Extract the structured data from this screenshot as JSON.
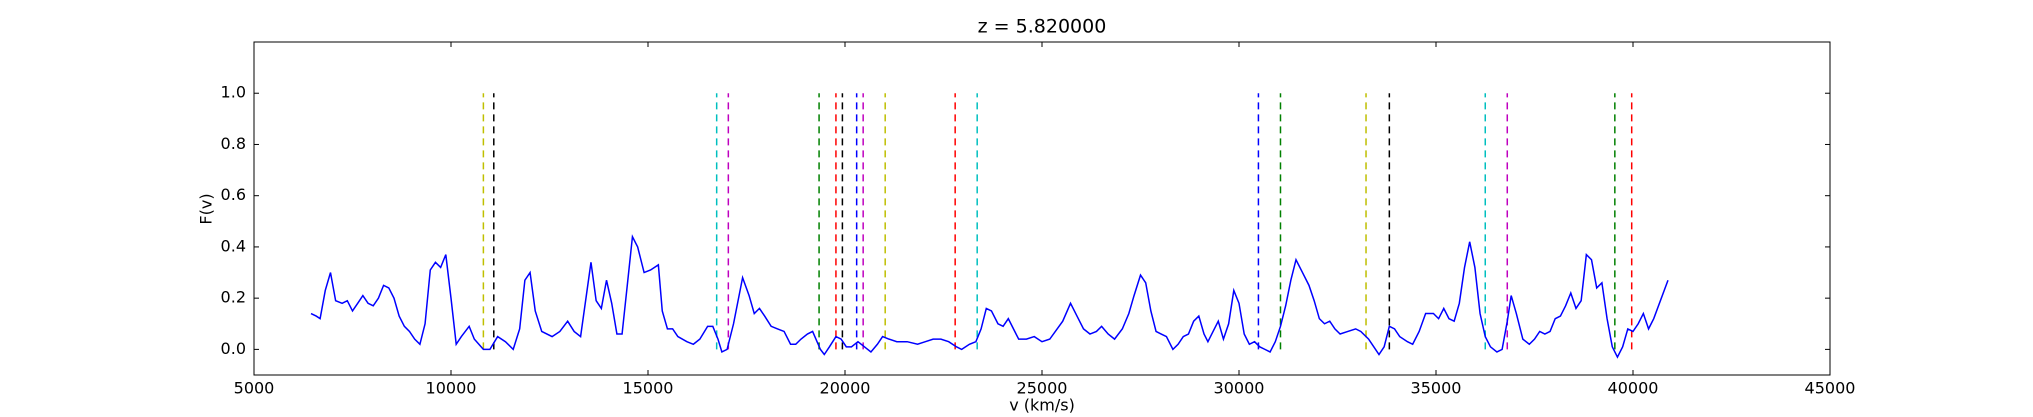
{
  "chart_data": {
    "type": "line",
    "title": "z = 5.820000",
    "xlabel": "v (km/s)",
    "ylabel": "F(v)",
    "xlim": [
      5000,
      45000
    ],
    "ylim": [
      -0.1,
      1.2
    ],
    "xticks": [
      5000,
      10000,
      15000,
      20000,
      25000,
      30000,
      35000,
      40000,
      45000
    ],
    "yticks": [
      {
        "value": 0,
        "label": "0.0"
      },
      {
        "value": 0.2,
        "label": "0.2"
      },
      {
        "value": 0.4,
        "label": "0.4"
      },
      {
        "value": 0.6,
        "label": "0.6"
      },
      {
        "value": 0.8,
        "label": "0.8"
      },
      {
        "value": 1,
        "label": "1.0"
      }
    ],
    "grid": false,
    "x": [
      6447,
      6579,
      6678,
      6809,
      6941,
      7072,
      7237,
      7368,
      7500,
      7632,
      7763,
      7895,
      8026,
      8158,
      8289,
      8421,
      8553,
      8684,
      8816,
      8947,
      9079,
      9211,
      9342,
      9474,
      9605,
      9737,
      9868,
      10000,
      10132,
      10263,
      10461,
      10592,
      10822,
      10987,
      11184,
      11382,
      11579,
      11743,
      11875,
      12007,
      12138,
      12303,
      12566,
      12763,
      12961,
      13125,
      13289,
      13553,
      13684,
      13816,
      13947,
      14079,
      14211,
      14342,
      14474,
      14605,
      14737,
      14901,
      15066,
      15263,
      15362,
      15493,
      15625,
      15757,
      15987,
      16151,
      16316,
      16513,
      16645,
      16776,
      16875,
      17007,
      17171,
      17401,
      17566,
      17697,
      17829,
      17961,
      18125,
      18289,
      18454,
      18618,
      18750,
      18882,
      19046,
      19178,
      19375,
      19474,
      19605,
      19770,
      19901,
      20033,
      20164,
      20329,
      20493,
      20658,
      20822,
      20954,
      21118,
      21316,
      21579,
      21842,
      22039,
      22237,
      22434,
      22632,
      22829,
      22961,
      23158,
      23322,
      23454,
      23586,
      23717,
      23882,
      24013,
      24145,
      24276,
      24408,
      24605,
      24803,
      25000,
      25197,
      25526,
      25724,
      25888,
      26053,
      26217,
      26382,
      26513,
      26678,
      26842,
      27039,
      27204,
      27336,
      27500,
      27632,
      27763,
      27895,
      28026,
      28158,
      28322,
      28454,
      28586,
      28717,
      28849,
      28980,
      29112,
      29211,
      29342,
      29474,
      29605,
      29737,
      29868,
      30000,
      30132,
      30263,
      30395,
      30526,
      30658,
      30789,
      30921,
      31053,
      31184,
      31316,
      31447,
      31612,
      31776,
      31908,
      32039,
      32171,
      32303,
      32434,
      32566,
      32763,
      32961,
      33092,
      33289,
      33421,
      33553,
      33684,
      33816,
      33947,
      34079,
      34276,
      34408,
      34572,
      34737,
      34934,
      35066,
      35197,
      35329,
      35461,
      35592,
      35724,
      35855,
      35987,
      36118,
      36250,
      36382,
      36546,
      36678,
      36809,
      36908,
      37039,
      37204,
      37368,
      37500,
      37632,
      37763,
      37895,
      38026,
      38158,
      38289,
      38421,
      38553,
      38684,
      38816,
      38947,
      39079,
      39211,
      39342,
      39474,
      39605,
      39737,
      39868,
      40000,
      40132,
      40263,
      40395,
      40526,
      40888
    ],
    "series": [
      {
        "color": "#0000ff",
        "values": [
          0.14,
          0.13,
          0.12,
          0.23,
          0.3,
          0.19,
          0.18,
          0.19,
          0.15,
          0.18,
          0.21,
          0.18,
          0.17,
          0.2,
          0.25,
          0.24,
          0.2,
          0.13,
          0.09,
          0.07,
          0.04,
          0.02,
          0.1,
          0.31,
          0.34,
          0.32,
          0.37,
          0.2,
          0.02,
          0.05,
          0.09,
          0.04,
          0.0,
          0.0,
          0.05,
          0.03,
          0.0,
          0.08,
          0.27,
          0.3,
          0.15,
          0.07,
          0.05,
          0.07,
          0.11,
          0.07,
          0.05,
          0.34,
          0.19,
          0.16,
          0.27,
          0.18,
          0.06,
          0.06,
          0.25,
          0.44,
          0.4,
          0.3,
          0.31,
          0.33,
          0.15,
          0.08,
          0.08,
          0.05,
          0.03,
          0.02,
          0.04,
          0.09,
          0.09,
          0.04,
          -0.01,
          0.0,
          0.1,
          0.28,
          0.21,
          0.14,
          0.16,
          0.13,
          0.09,
          0.08,
          0.07,
          0.02,
          0.02,
          0.04,
          0.06,
          0.07,
          0.0,
          -0.02,
          0.01,
          0.05,
          0.04,
          0.01,
          0.01,
          0.03,
          0.01,
          -0.01,
          0.02,
          0.05,
          0.04,
          0.03,
          0.03,
          0.02,
          0.03,
          0.04,
          0.04,
          0.03,
          0.01,
          0.0,
          0.02,
          0.03,
          0.08,
          0.16,
          0.15,
          0.1,
          0.09,
          0.12,
          0.08,
          0.04,
          0.04,
          0.05,
          0.03,
          0.04,
          0.11,
          0.18,
          0.13,
          0.08,
          0.06,
          0.07,
          0.09,
          0.06,
          0.04,
          0.08,
          0.14,
          0.21,
          0.29,
          0.26,
          0.15,
          0.07,
          0.06,
          0.05,
          0.0,
          0.02,
          0.05,
          0.06,
          0.11,
          0.13,
          0.06,
          0.03,
          0.07,
          0.11,
          0.04,
          0.1,
          0.23,
          0.18,
          0.06,
          0.02,
          0.03,
          0.01,
          0.0,
          -0.01,
          0.03,
          0.09,
          0.17,
          0.27,
          0.35,
          0.3,
          0.25,
          0.19,
          0.12,
          0.1,
          0.11,
          0.08,
          0.06,
          0.07,
          0.08,
          0.07,
          0.04,
          0.01,
          -0.02,
          0.01,
          0.09,
          0.08,
          0.05,
          0.03,
          0.02,
          0.07,
          0.14,
          0.14,
          0.12,
          0.16,
          0.12,
          0.11,
          0.18,
          0.32,
          0.42,
          0.32,
          0.14,
          0.05,
          0.01,
          -0.01,
          0.0,
          0.11,
          0.21,
          0.14,
          0.04,
          0.02,
          0.04,
          0.07,
          0.06,
          0.07,
          0.12,
          0.13,
          0.17,
          0.22,
          0.16,
          0.19,
          0.37,
          0.35,
          0.24,
          0.26,
          0.12,
          0.01,
          -0.03,
          0.01,
          0.08,
          0.07,
          0.1,
          0.14,
          0.08,
          0.12,
          0.27
        ]
      }
    ],
    "vlines": {
      "ymin": 0,
      "ymax": 1,
      "x": [
        10822,
        11086,
        16743,
        17039,
        19342,
        19770,
        19934,
        20296,
        20461,
        21020,
        22796,
        23355,
        30493,
        31053,
        33224,
        33816,
        36250,
        36809,
        39539,
        39967
      ],
      "colors": [
        "#bfbf00",
        "#000000",
        "#00bfbf",
        "#bf00bf",
        "#008000",
        "#ff0000",
        "#000000",
        "#0000ff",
        "#bf00bf",
        "#bfbf00",
        "#ff0000",
        "#00bfbf",
        "#0000ff",
        "#008000",
        "#bfbf00",
        "#000000",
        "#00bfbf",
        "#bf00bf",
        "#008000",
        "#ff0000"
      ]
    }
  }
}
